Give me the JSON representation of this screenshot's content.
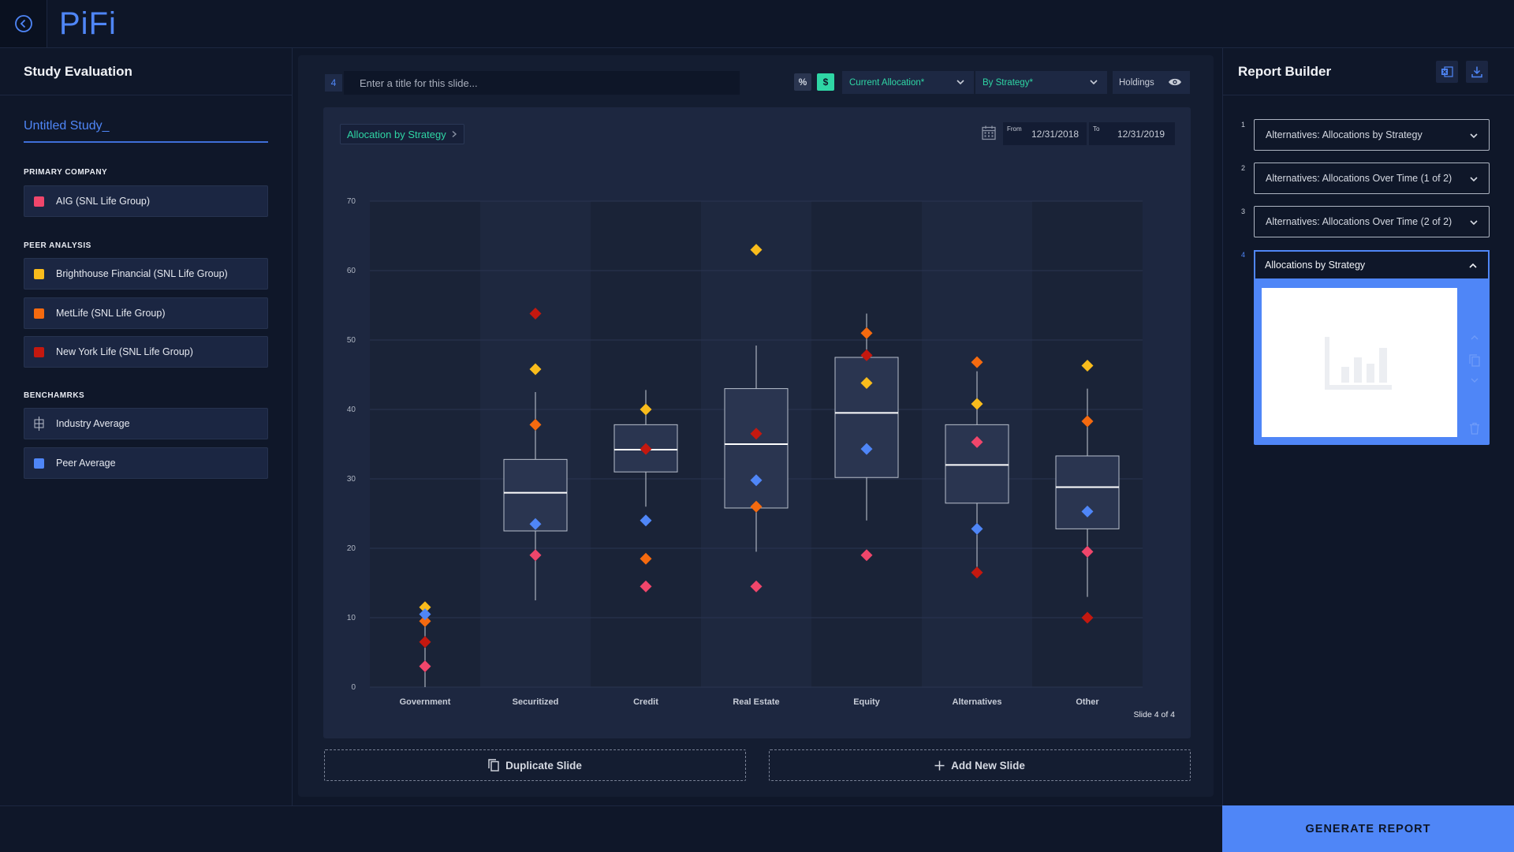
{
  "app": {
    "logo": "PiFi"
  },
  "left": {
    "title": "Study Evaluation",
    "study_name": "Untitled Study_",
    "primary_label": "PRIMARY COMPANY",
    "primary": {
      "name": "AIG (SNL Life Group)",
      "color": "#f0466b"
    },
    "peer_label": "PEER ANALYSIS",
    "peers": [
      {
        "name": "Brighthouse Financial (SNL Life Group)",
        "color": "#f9bc1c"
      },
      {
        "name": "MetLife (SNL Life Group)",
        "color": "#f56a0f"
      },
      {
        "name": "New York Life (SNL Life Group)",
        "color": "#c4180f"
      }
    ],
    "bench_label": "BENCHAMRKS",
    "benchmarks": [
      {
        "name": "Industry Average",
        "icon": "boxplot-icon"
      },
      {
        "name": "Peer Average",
        "color": "#4f86f7"
      }
    ]
  },
  "toolbar": {
    "slide_number": "4",
    "title_placeholder": "Enter a title for this slide...",
    "pct_label": "%",
    "usd_label": "$",
    "allocation_dropdown": "Current Allocation*",
    "strategy_dropdown": "By Strategy*",
    "holdings_label": "Holdings"
  },
  "chart_header": {
    "chip_label": "Allocation by Strategy",
    "from_label": "From",
    "from_date": "12/31/2018",
    "to_label": "To",
    "to_date": "12/31/2019",
    "slide_count": "Slide 4 of 4"
  },
  "chart_data": {
    "type": "boxplot",
    "ylim": [
      0,
      70
    ],
    "yticks": [
      "0",
      "10",
      "20",
      "30",
      "40",
      "50",
      "60",
      "70"
    ],
    "categories": [
      "Government",
      "Securitized",
      "Credit",
      "Real Estate",
      "Equity",
      "Alternatives",
      "Other"
    ],
    "boxes": [
      null,
      {
        "whisker_low": 12.5,
        "q1": 22.5,
        "median": 28,
        "q3": 32.8,
        "whisker_high": 42.5
      },
      {
        "whisker_low": 26,
        "q1": 31,
        "median": 34.2,
        "q3": 37.8,
        "whisker_high": 42.8
      },
      {
        "whisker_low": 19.5,
        "q1": 25.8,
        "median": 35,
        "q3": 43,
        "whisker_high": 49.2
      },
      {
        "whisker_low": 24,
        "q1": 30.2,
        "median": 39.5,
        "q3": 47.5,
        "whisker_high": 53.8
      },
      {
        "whisker_low": 17,
        "q1": 26.5,
        "median": 32,
        "q3": 37.8,
        "whisker_high": 45.5
      },
      {
        "whisker_low": 13,
        "q1": 22.8,
        "median": 28.8,
        "q3": 33.3,
        "whisker_high": 43
      }
    ],
    "government_line": [
      0,
      11
    ],
    "series": [
      {
        "name": "AIG (SNL Life Group)",
        "color": "#f0466b",
        "values": [
          3,
          19,
          14.5,
          14.5,
          19,
          35.3,
          19.5
        ]
      },
      {
        "name": "Brighthouse Financial (SNL Life Group)",
        "color": "#f9bc1c",
        "values": [
          11.5,
          45.8,
          40,
          63,
          43.8,
          40.8,
          46.3
        ]
      },
      {
        "name": "MetLife (SNL Life Group)",
        "color": "#f56a0f",
        "values": [
          9.5,
          37.8,
          18.5,
          26,
          51,
          46.8,
          38.3
        ]
      },
      {
        "name": "New York Life (SNL Life Group)",
        "color": "#c4180f",
        "values": [
          6.5,
          53.8,
          34.3,
          36.5,
          47.8,
          16.5,
          10
        ]
      },
      {
        "name": "Peer Average",
        "color": "#4f86f7",
        "values": [
          10.5,
          23.5,
          24,
          29.8,
          34.3,
          22.8,
          25.3
        ]
      }
    ]
  },
  "actions": {
    "duplicate": "Duplicate Slide",
    "add": "Add New Slide",
    "generate": "GENERATE REPORT"
  },
  "report_builder": {
    "title": "Report Builder",
    "slides": [
      {
        "num": "1",
        "label": "Alternatives: Allocations by Strategy"
      },
      {
        "num": "2",
        "label": "Alternatives: Allocations Over Time (1 of 2)"
      },
      {
        "num": "3",
        "label": "Alternatives: Allocations Over Time (2 of 2)"
      }
    ],
    "active": {
      "num": "4",
      "label": "Allocations by Strategy"
    }
  }
}
